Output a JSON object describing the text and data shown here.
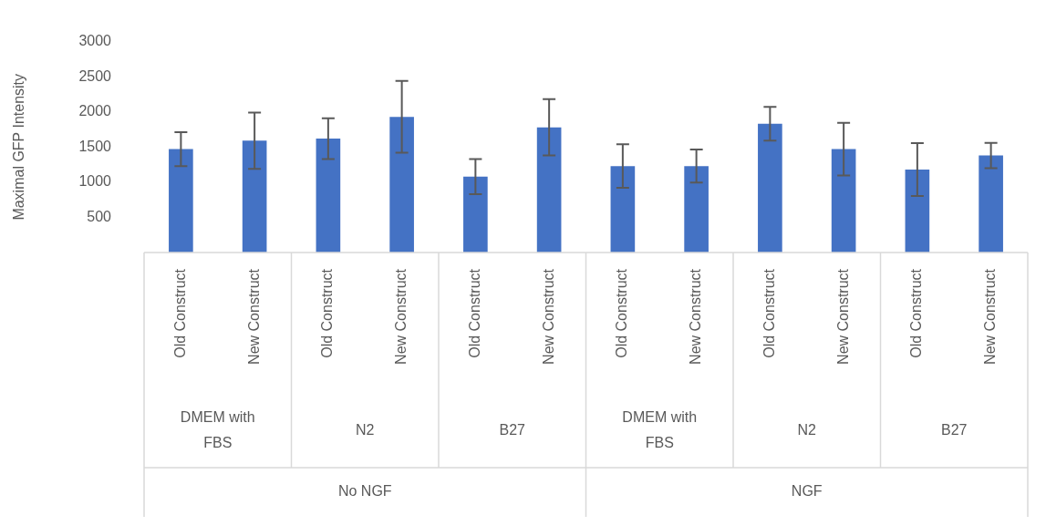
{
  "chart_data": {
    "type": "bar",
    "ylabel": "Maximal GFP Intensity",
    "categories": [
      "Old Construct",
      "New Construct",
      "Old Construct",
      "New Construct",
      "Old Construct",
      "New Construct",
      "Old Construct",
      "New Construct",
      "Old Construct",
      "New Construct",
      "Old Construct",
      "New Construct"
    ],
    "values": [
      1470,
      1590,
      1620,
      1930,
      1080,
      1780,
      1230,
      1230,
      1830,
      1470,
      1180,
      1380
    ],
    "errors": [
      240,
      400,
      290,
      510,
      250,
      400,
      310,
      235,
      240,
      375,
      375,
      180
    ],
    "color": "#4472c4",
    "ylim": [
      0,
      3000
    ],
    "yticks": [
      500,
      1000,
      1500,
      2000,
      2500,
      3000
    ],
    "grid": false,
    "annotations": [
      "DMEM with FBS",
      "N2",
      "B27",
      "DMEM with FBS",
      "N2",
      "B27",
      "No NGF",
      "NGF"
    ]
  }
}
